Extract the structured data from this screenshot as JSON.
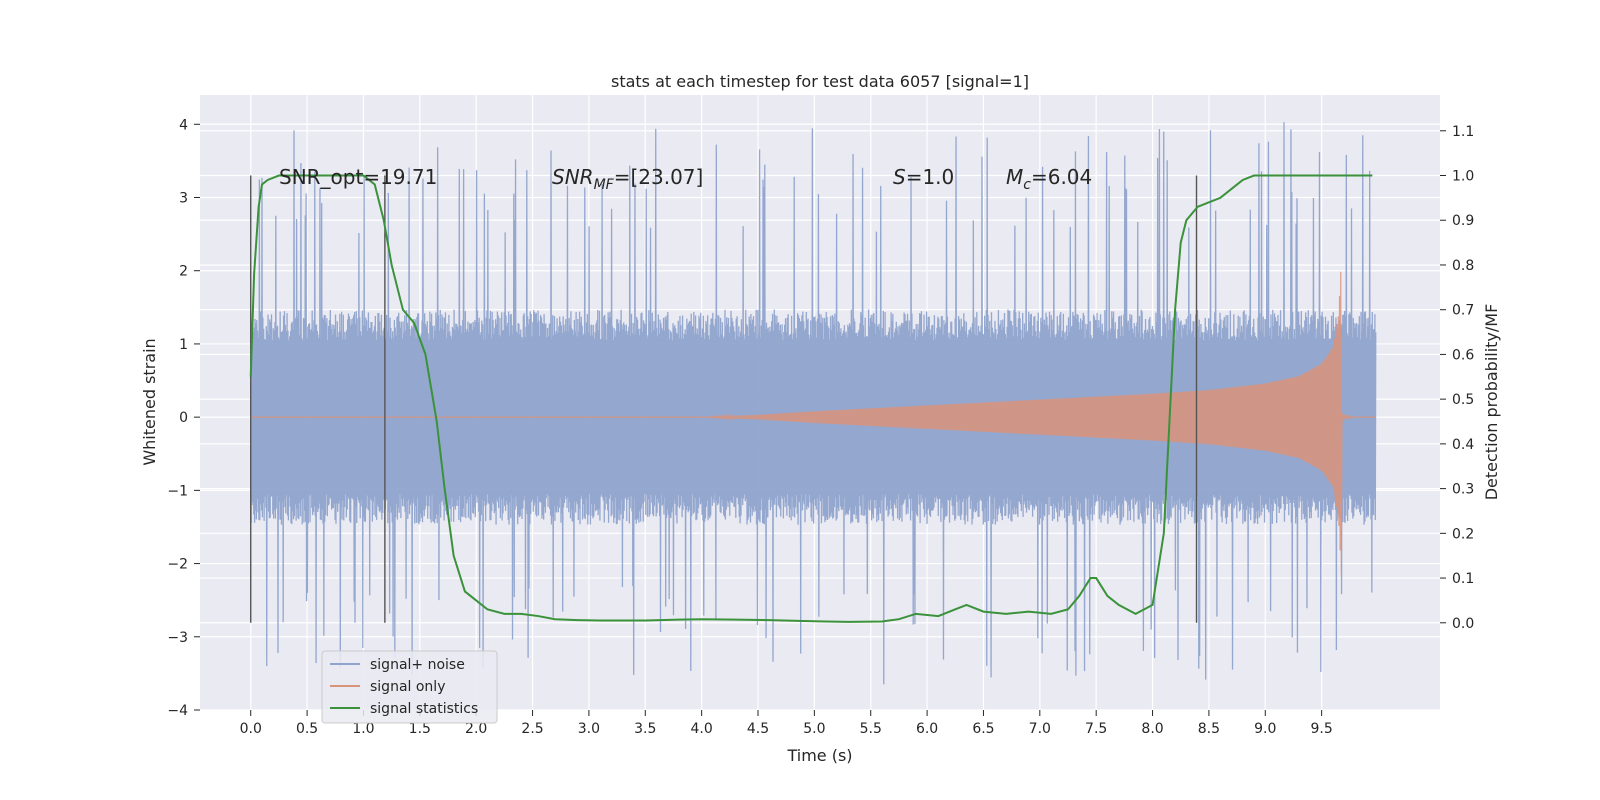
{
  "chart_data": {
    "type": "line",
    "title": "stats at each timestep for test data 6057 [signal=1]",
    "xlabel": "Time (s)",
    "ylabel_left": "Whitened strain",
    "ylabel_right": "Detection probability/MF",
    "xlim": [
      -0.45,
      10.55
    ],
    "ylim_left": [
      -4.0,
      4.4
    ],
    "ylim_right": [
      -0.195,
      1.18
    ],
    "xticks": [
      "0.0",
      "0.5",
      "1.0",
      "1.5",
      "2.0",
      "2.5",
      "3.0",
      "3.5",
      "4.0",
      "4.5",
      "5.0",
      "5.5",
      "6.0",
      "6.5",
      "7.0",
      "7.5",
      "8.0",
      "8.5",
      "9.0",
      "9.5"
    ],
    "yticks_left": [
      "4",
      "3",
      "2",
      "1",
      "0",
      "−1",
      "−2",
      "−3",
      "−4"
    ],
    "yticks_right": [
      "1.1",
      "1.0",
      "0.9",
      "0.8",
      "0.7",
      "0.6",
      "0.5",
      "0.4",
      "0.3",
      "0.2",
      "0.1",
      "0.0"
    ],
    "yticks_left_values": [
      4,
      3,
      2,
      1,
      0,
      -1,
      -2,
      -3,
      -4
    ],
    "yticks_right_values": [
      1.1,
      1.0,
      0.9,
      0.8,
      0.7,
      0.6,
      0.5,
      0.4,
      0.3,
      0.2,
      0.1,
      0.0
    ],
    "grid": true,
    "legend_position": "lower-left",
    "annotations": {
      "snr_opt": "SNR_opt=19.71",
      "snr_mf_sym": "SNR",
      "snr_mf_sub": "MF",
      "snr_mf_val": "=[23.07]",
      "s_sym": "S",
      "s_val": "=1.0",
      "mc_sym": "M",
      "mc_sub": "c",
      "mc_val": "=6.04"
    },
    "vertical_markers_x": [
      0.0,
      1.19,
      8.39
    ],
    "series": [
      {
        "name": "signal+ noise",
        "color": "#8fa3cc",
        "kind": "noise-band",
        "x_range": [
          0.0,
          9.98
        ],
        "typical_amplitude": 1.4,
        "max_amplitude": 4.05,
        "min_amplitude": -3.65
      },
      {
        "name": "signal only",
        "color": "#d9937a",
        "kind": "chirp-envelope",
        "x": [
          0.0,
          4.0,
          4.5,
          5.0,
          5.5,
          6.0,
          6.5,
          7.0,
          7.5,
          8.0,
          8.5,
          9.0,
          9.3,
          9.5,
          9.6,
          9.65,
          9.68
        ],
        "envelope": [
          0.0,
          0.0,
          0.03,
          0.08,
          0.12,
          0.16,
          0.2,
          0.24,
          0.28,
          0.32,
          0.37,
          0.46,
          0.56,
          0.73,
          0.95,
          1.4,
          2.3
        ]
      },
      {
        "name": "signal statistics",
        "color": "#3a923a",
        "kind": "line",
        "axis": "right",
        "x": [
          0.0,
          0.03,
          0.07,
          0.1,
          0.15,
          0.25,
          0.4,
          0.6,
          0.8,
          1.0,
          1.1,
          1.18,
          1.25,
          1.35,
          1.45,
          1.55,
          1.65,
          1.72,
          1.8,
          1.9,
          2.0,
          2.1,
          2.25,
          2.4,
          2.55,
          2.7,
          2.9,
          3.1,
          3.5,
          3.8,
          4.0,
          4.3,
          4.6,
          4.9,
          5.1,
          5.3,
          5.6,
          5.75,
          5.9,
          6.1,
          6.25,
          6.35,
          6.5,
          6.7,
          6.9,
          7.1,
          7.25,
          7.35,
          7.45,
          7.5,
          7.6,
          7.7,
          7.85,
          8.0,
          8.1,
          8.15,
          8.2,
          8.25,
          8.3,
          8.4,
          8.5,
          8.6,
          8.7,
          8.8,
          8.9,
          9.0,
          9.3,
          9.6,
          9.95
        ],
        "y": [
          0.55,
          0.78,
          0.93,
          0.98,
          0.99,
          1.0,
          1.0,
          1.0,
          1.0,
          1.0,
          0.98,
          0.9,
          0.8,
          0.7,
          0.67,
          0.6,
          0.45,
          0.3,
          0.15,
          0.07,
          0.05,
          0.03,
          0.02,
          0.02,
          0.015,
          0.008,
          0.006,
          0.005,
          0.005,
          0.007,
          0.008,
          0.007,
          0.006,
          0.004,
          0.003,
          0.002,
          0.003,
          0.008,
          0.02,
          0.015,
          0.03,
          0.04,
          0.025,
          0.02,
          0.025,
          0.02,
          0.03,
          0.06,
          0.1,
          0.1,
          0.06,
          0.04,
          0.02,
          0.04,
          0.2,
          0.45,
          0.7,
          0.85,
          0.9,
          0.93,
          0.94,
          0.95,
          0.97,
          0.99,
          1.0,
          1.0,
          1.0,
          1.0,
          1.0
        ]
      }
    ]
  }
}
